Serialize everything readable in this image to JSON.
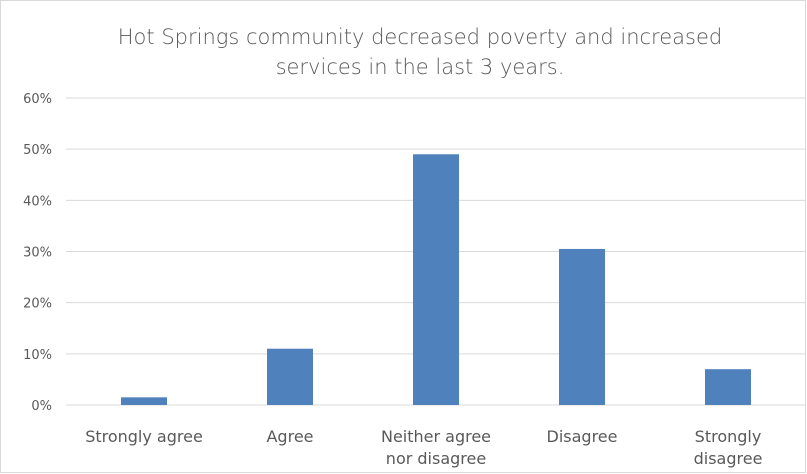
{
  "chart_data": {
    "type": "bar",
    "title_lines": [
      "Hot Springs community decreased poverty and increased",
      "services in the last 3 years."
    ],
    "categories": [
      [
        "Strongly agree"
      ],
      [
        "Agree"
      ],
      [
        "Neither agree",
        "nor disagree"
      ],
      [
        "Disagree"
      ],
      [
        "Strongly",
        "disagree"
      ]
    ],
    "values": [
      1.5,
      11,
      49,
      30.5,
      7
    ],
    "ylim": [
      0,
      60
    ],
    "yticks": [
      0,
      10,
      20,
      30,
      40,
      50,
      60
    ],
    "ytick_labels": [
      "0%",
      "10%",
      "20%",
      "30%",
      "40%",
      "50%",
      "60%"
    ],
    "grid": true,
    "bar_color": "#4f81bd",
    "grid_color": "#d9d9d9"
  }
}
